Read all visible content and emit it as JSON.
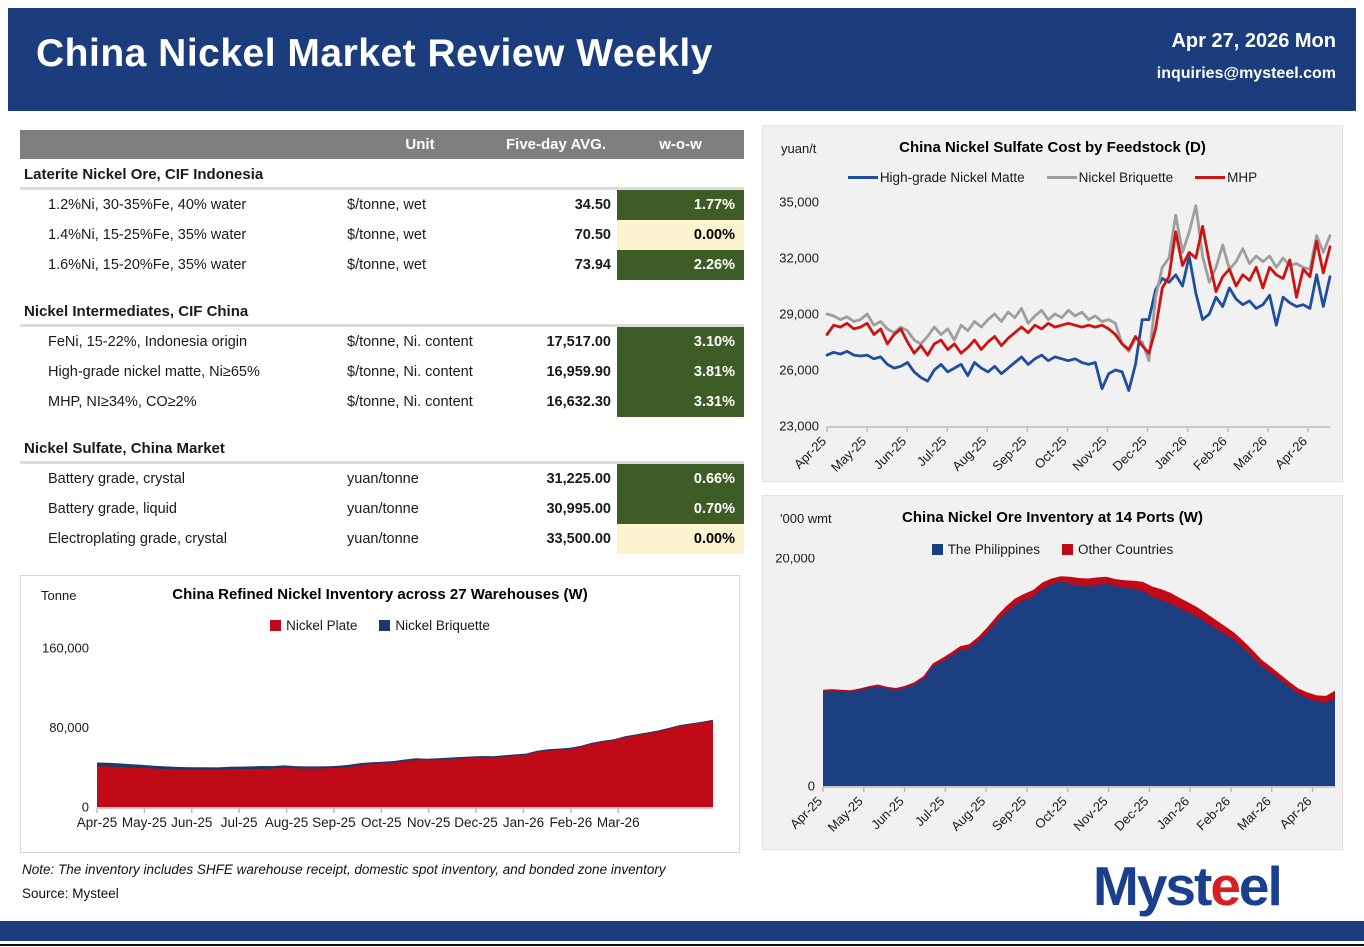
{
  "header": {
    "title": "China Nickel Market Review Weekly",
    "date": "Apr 27, 2026 Mon",
    "email": "inquiries@mysteel.com"
  },
  "table": {
    "columns": [
      "Unit",
      "Five-day AVG.",
      "w-o-w"
    ],
    "sections": [
      {
        "title": "Laterite Nickel Ore, CIF Indonesia",
        "rows": [
          {
            "item": "1.2%Ni, 30-35%Fe, 40% water",
            "unit": "$/tonne, wet",
            "avg": "34.50",
            "wow": "1.77%",
            "wow_style": "up"
          },
          {
            "item": "1.4%Ni, 15-25%Fe, 35% water",
            "unit": "$/tonne, wet",
            "avg": "70.50",
            "wow": "0.00%",
            "wow_style": "flat"
          },
          {
            "item": "1.6%Ni, 15-20%Fe, 35% water",
            "unit": "$/tonne, wet",
            "avg": "73.94",
            "wow": "2.26%",
            "wow_style": "up"
          }
        ]
      },
      {
        "title": "Nickel Intermediates, CIF China",
        "rows": [
          {
            "item": "FeNi, 15-22%, Indonesia origin",
            "unit": "$/tonne, Ni. content",
            "avg": "17,517.00",
            "wow": "3.10%",
            "wow_style": "up"
          },
          {
            "item": "High-grade nickel matte, Ni≥65%",
            "unit": "$/tonne, Ni. content",
            "avg": "16,959.90",
            "wow": "3.81%",
            "wow_style": "up"
          },
          {
            "item": "MHP, NI≥34%, CO≥2%",
            "unit": "$/tonne, Ni. content",
            "avg": "16,632.30",
            "wow": "3.31%",
            "wow_style": "up"
          }
        ]
      },
      {
        "title": "Nickel Sulfate, China Market",
        "rows": [
          {
            "item": "Battery grade, crystal",
            "unit": "yuan/tonne",
            "avg": "31,225.00",
            "wow": "0.66%",
            "wow_style": "up"
          },
          {
            "item": "Battery grade, liquid",
            "unit": "yuan/tonne",
            "avg": "30,995.00",
            "wow": "0.70%",
            "wow_style": "up"
          },
          {
            "item": "Electroplating grade, crystal",
            "unit": "yuan/tonne",
            "avg": "33,500.00",
            "wow": "0.00%",
            "wow_style": "flat"
          }
        ]
      }
    ]
  },
  "footer": {
    "note": "Note: The inventory includes SHFE warehouse receipt, domestic spot inventory, and bonded zone inventory",
    "source": "Source: Mysteel",
    "logo_part1": "Myst",
    "logo_part2": "e",
    "logo_part3": "el"
  },
  "colors": {
    "header_navy": "#1B3D7E",
    "table_header_gray": "#7F7F7F",
    "wow_green": "#3E5C25",
    "wow_cream": "#FBF2CF",
    "line_blue": "#1F4E9C",
    "line_gray": "#9E9E9E",
    "line_red": "#CC1414",
    "area_red": "#C00A18",
    "area_blue": "#1B3F80",
    "panel_gray": "#F1F1F1"
  },
  "chart_data": [
    {
      "type": "line",
      "title": "China Nickel Sulfate Cost by Feedstock (D)",
      "unit_label": "yuan/t",
      "ylim": [
        23000,
        35000
      ],
      "yticks": [
        23000,
        26000,
        29000,
        32000,
        35000
      ],
      "x_labels": [
        "Apr-25",
        "May-25",
        "Jun-25",
        "Jul-25",
        "Aug-25",
        "Sep-25",
        "Oct-25",
        "Nov-25",
        "Dec-25",
        "Jan-26",
        "Feb-26",
        "Mar-26",
        "Apr-26"
      ],
      "legend_position": "top",
      "grid": false,
      "series": [
        {
          "name": "High-grade Nickel Matte",
          "color": "#1F4E9C",
          "values": [
            26800,
            26950,
            26850,
            27000,
            26800,
            26750,
            26800,
            26600,
            26700,
            26300,
            26100,
            26200,
            26400,
            25900,
            25600,
            25400,
            26000,
            26300,
            25900,
            26100,
            26300,
            25700,
            26400,
            26100,
            25900,
            26200,
            25800,
            26100,
            26400,
            26700,
            26300,
            26600,
            26800,
            26500,
            26700,
            26600,
            26500,
            26600,
            26400,
            26300,
            26400,
            25000,
            25800,
            26000,
            25900,
            24900,
            26300,
            28700,
            28700,
            30300,
            30900,
            30700,
            31100,
            30500,
            32100,
            30100,
            28700,
            29000,
            29900,
            29400,
            30400,
            29800,
            29500,
            29700,
            29300,
            29500,
            30000,
            28400,
            29900,
            29600,
            29400,
            29500,
            29300,
            31100,
            29400,
            31000
          ]
        },
        {
          "name": "Nickel Briquette",
          "color": "#9E9E9E",
          "values": [
            29000,
            28900,
            28700,
            28850,
            28600,
            28700,
            29000,
            28400,
            28600,
            28200,
            28000,
            28300,
            28100,
            27600,
            27400,
            27800,
            28300,
            27900,
            28200,
            27600,
            28400,
            28100,
            28600,
            28300,
            28700,
            29000,
            28600,
            29100,
            28800,
            29300,
            28500,
            28900,
            29200,
            28700,
            29000,
            28800,
            29200,
            28900,
            29100,
            28700,
            28900,
            28600,
            28700,
            28500,
            27400,
            27000,
            27700,
            27500,
            26500,
            29900,
            31500,
            32000,
            34300,
            32300,
            33400,
            34800,
            32100,
            30700,
            31500,
            32700,
            31400,
            31800,
            32500,
            31700,
            32100,
            31800,
            32100,
            31500,
            32000,
            31600,
            31700,
            31500,
            31400,
            33200,
            32300,
            33200
          ]
        },
        {
          "name": "MHP",
          "color": "#CC1414",
          "values": [
            27900,
            28400,
            28300,
            28500,
            28200,
            28300,
            28500,
            27900,
            28200,
            27400,
            27900,
            28200,
            27500,
            26900,
            27300,
            26800,
            27400,
            27600,
            27100,
            27400,
            26900,
            27200,
            27600,
            27100,
            27500,
            27800,
            27300,
            27700,
            28000,
            28300,
            28000,
            28400,
            28200,
            28500,
            28300,
            28400,
            28500,
            28400,
            28300,
            28400,
            28300,
            28400,
            28200,
            27900,
            27400,
            27100,
            27800,
            27300,
            26900,
            28200,
            30400,
            31000,
            33400,
            31600,
            32300,
            32000,
            33700,
            31800,
            30200,
            31000,
            31400,
            30500,
            31100,
            30800,
            31500,
            30400,
            31500,
            31100,
            30900,
            31900,
            29900,
            31400,
            31000,
            32900,
            31200,
            32600
          ]
        }
      ]
    },
    {
      "type": "area",
      "stacked": true,
      "title": "China Refined Nickel Inventory across 27 Warehouses (W)",
      "unit_label": "Tonne",
      "ylim": [
        0,
        160000
      ],
      "yticks": [
        0,
        80000,
        160000
      ],
      "x_labels": [
        "Apr-25",
        "May-25",
        "Jun-25",
        "Jul-25",
        "Aug-25",
        "Sep-25",
        "Oct-25",
        "Nov-25",
        "Dec-25",
        "Jan-26",
        "Feb-26",
        "Mar-26"
      ],
      "legend_position": "top",
      "grid": false,
      "series": [
        {
          "name": "Nickel Plate",
          "color": "#C00A18",
          "values": [
            41000,
            40800,
            40300,
            39800,
            39300,
            38700,
            38200,
            37800,
            37500,
            37300,
            37500,
            37300,
            38000,
            38300,
            38200,
            38400,
            38600,
            39400,
            38800,
            38600,
            38700,
            39000,
            39500,
            40600,
            42400,
            43200,
            43800,
            44500,
            46100,
            47400,
            46900,
            47400,
            48100,
            48800,
            49300,
            49800,
            49600,
            50600,
            51500,
            52400,
            55400,
            56800,
            57600,
            58400,
            60500,
            63600,
            65500,
            67100,
            70100,
            72100,
            74000,
            76000,
            78600,
            81600,
            83200,
            84800,
            86800
          ]
        },
        {
          "name": "Nickel Briquette",
          "color": "#1B3A6B",
          "values": [
            3800,
            3700,
            3600,
            3400,
            3200,
            3000,
            2900,
            2800,
            2700,
            2600,
            2600,
            2500,
            2500,
            2400,
            2700,
            2900,
            2600,
            2500,
            2400,
            2300,
            2200,
            2100,
            2100,
            2100,
            1900,
            1900,
            1800,
            1800,
            1700,
            1700,
            1600,
            1600,
            1600,
            1500,
            1500,
            1500,
            1400,
            1400,
            1400,
            1300,
            1300,
            1300,
            1200,
            1200,
            1200,
            1100,
            1100,
            1100,
            1100,
            1000,
            1000,
            1000,
            1000,
            900,
            900,
            900,
            900
          ]
        }
      ]
    },
    {
      "type": "area",
      "stacked": true,
      "title": "China Nickel Ore Inventory at 14 Ports (W)",
      "unit_label": "'000 wmt",
      "ylim": [
        0,
        20000
      ],
      "yticks": [
        0,
        20000
      ],
      "x_labels": [
        "Apr-25",
        "May-25",
        "Jun-25",
        "Jul-25",
        "Aug-25",
        "Sep-25",
        "Oct-25",
        "Nov-25",
        "Dec-25",
        "Jan-26",
        "Feb-26",
        "Mar-26",
        "Apr-26"
      ],
      "legend_position": "top",
      "grid": false,
      "series": [
        {
          "name": "The Philippines",
          "color": "#1B3F80",
          "values": [
            8300,
            8350,
            8300,
            8250,
            8400,
            8600,
            8750,
            8550,
            8450,
            8600,
            8900,
            9400,
            10500,
            10900,
            11400,
            11900,
            12100,
            12700,
            13500,
            14400,
            15200,
            15900,
            16300,
            16600,
            17300,
            17700,
            17950,
            17750,
            17550,
            17500,
            17650,
            17750,
            17550,
            17400,
            17300,
            17100,
            16600,
            16300,
            16000,
            15600,
            15200,
            14800,
            14300,
            13800,
            13300,
            12800,
            12100,
            11300,
            10500,
            9900,
            9300,
            8700,
            8100,
            7700,
            7400,
            7300,
            7700
          ]
        },
        {
          "name": "Other Countries",
          "color": "#C00A18",
          "values": [
            150,
            150,
            150,
            150,
            150,
            150,
            150,
            150,
            150,
            200,
            200,
            250,
            250,
            300,
            300,
            350,
            350,
            400,
            450,
            500,
            550,
            550,
            550,
            600,
            550,
            500,
            450,
            600,
            700,
            700,
            650,
            600,
            600,
            650,
            700,
            800,
            900,
            950,
            950,
            900,
            900,
            850,
            800,
            750,
            700,
            650,
            600,
            600,
            550,
            550,
            500,
            450,
            450,
            500,
            550,
            600,
            650
          ]
        }
      ]
    }
  ]
}
